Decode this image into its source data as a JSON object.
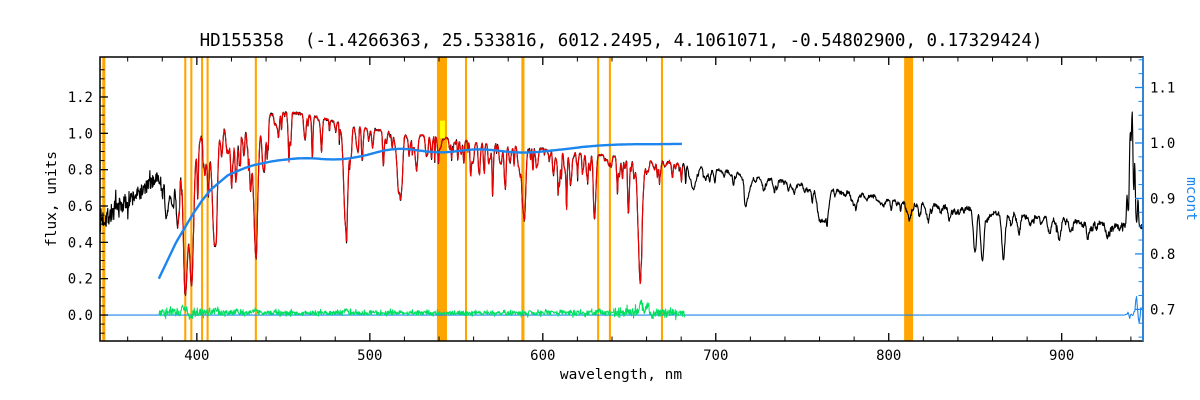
{
  "chart_data": {
    "type": "line",
    "title": "HD155358  (-1.4266363, 25.533816, 6012.2495, 4.1061071, -0.54802900, 0.17329424)",
    "xlabel": "wavelength, nm",
    "ylabel_left": "flux, units",
    "ylabel_right": "mcont",
    "x_range": [
      344,
      947
    ],
    "y_left_range": [
      -0.143,
      1.42
    ],
    "y_right_range": [
      0.643,
      1.155
    ],
    "x_major_ticks": [
      400,
      500,
      600,
      700,
      800,
      900
    ],
    "x_minor_step": 20,
    "y_left_major_ticks": [
      "0.0",
      "0.2",
      "0.4",
      "0.6",
      "0.8",
      "1.0",
      "1.2"
    ],
    "y_left_minor_step": 0.05,
    "y_right_major_ticks": [
      "0.7",
      "0.8",
      "0.9",
      "1.0",
      "1.1"
    ],
    "y_right_minor_step": 0.025,
    "grid": false,
    "legend": null,
    "colors": {
      "frame": "#000000",
      "observed": "#000000",
      "model": "#ee0000",
      "continuum": "#1c86ee",
      "residual": "#00e060",
      "marker_band": "#ffa500",
      "point_marker": "#ffff00",
      "right_axis": "#1c86ee"
    },
    "orange_markers": [
      {
        "x": 346.2,
        "w": 1.8
      },
      {
        "x": 393.3,
        "w": 1.2
      },
      {
        "x": 396.8,
        "w": 1.2
      },
      {
        "x": 403.0,
        "w": 1.2
      },
      {
        "x": 406.2,
        "w": 1.2
      },
      {
        "x": 434.1,
        "w": 1.2
      },
      {
        "x": 541.7,
        "w": 5.8
      },
      {
        "x": 555.6,
        "w": 1.2
      },
      {
        "x": 588.5,
        "w": 1.8
      },
      {
        "x": 632.0,
        "w": 1.2
      },
      {
        "x": 638.8,
        "w": 1.2
      },
      {
        "x": 668.9,
        "w": 1.2
      },
      {
        "x": 811.5,
        "w": 5.2
      }
    ],
    "yellow_marker": {
      "x": 542.0,
      "y_top": 1.07,
      "y_bottom": 0.972,
      "w_nm": 2.8
    },
    "series": {
      "observed": {
        "label": "observed spectrum",
        "range": [
          344.3,
          946.7
        ],
        "envelope": [
          [
            344,
            0.52
          ],
          [
            350,
            0.555
          ],
          [
            356,
            0.6
          ],
          [
            362,
            0.64
          ],
          [
            368,
            0.68
          ],
          [
            374,
            0.73
          ],
          [
            380,
            0.79
          ],
          [
            386,
            0.845
          ],
          [
            392,
            0.9
          ],
          [
            398,
            0.945
          ],
          [
            404,
            0.985
          ],
          [
            410,
            1.01
          ],
          [
            416,
            1.035
          ],
          [
            422,
            1.055
          ],
          [
            428,
            1.07
          ],
          [
            434,
            1.085
          ],
          [
            440,
            1.1
          ],
          [
            446,
            1.11
          ],
          [
            452,
            1.115
          ],
          [
            458,
            1.11
          ],
          [
            464,
            1.1
          ],
          [
            470,
            1.09
          ],
          [
            476,
            1.075
          ],
          [
            482,
            1.06
          ],
          [
            488,
            1.045
          ],
          [
            494,
            1.035
          ],
          [
            500,
            1.025
          ],
          [
            510,
            1.01
          ],
          [
            520,
            1.0
          ],
          [
            530,
            0.99
          ],
          [
            540,
            0.978
          ],
          [
            550,
            0.966
          ],
          [
            560,
            0.955
          ],
          [
            570,
            0.944
          ],
          [
            580,
            0.934
          ],
          [
            590,
            0.924
          ],
          [
            600,
            0.914
          ],
          [
            610,
            0.904
          ],
          [
            620,
            0.894
          ],
          [
            630,
            0.884
          ],
          [
            640,
            0.874
          ],
          [
            650,
            0.864
          ],
          [
            660,
            0.854
          ],
          [
            670,
            0.844
          ],
          [
            680,
            0.834
          ],
          [
            695,
            0.81
          ],
          [
            710,
            0.785
          ],
          [
            725,
            0.76
          ],
          [
            740,
            0.735
          ],
          [
            755,
            0.71
          ],
          [
            770,
            0.685
          ],
          [
            785,
            0.662
          ],
          [
            800,
            0.64
          ],
          [
            815,
            0.62
          ],
          [
            830,
            0.603
          ],
          [
            845,
            0.588
          ],
          [
            860,
            0.572
          ],
          [
            875,
            0.556
          ],
          [
            890,
            0.54
          ],
          [
            905,
            0.524
          ],
          [
            920,
            0.508
          ],
          [
            935,
            0.494
          ],
          [
            947,
            0.485
          ]
        ]
      },
      "model": {
        "label": "model fit",
        "range": [
          389,
          681
        ]
      },
      "continuum": {
        "label": "mcont continuum",
        "points": [
          [
            378,
            0.2
          ],
          [
            383,
            0.3
          ],
          [
            388,
            0.4
          ],
          [
            393,
            0.48
          ],
          [
            398,
            0.56
          ],
          [
            403,
            0.63
          ],
          [
            408,
            0.69
          ],
          [
            413,
            0.73
          ],
          [
            418,
            0.77
          ],
          [
            423,
            0.79
          ],
          [
            428,
            0.81
          ],
          [
            433,
            0.825
          ],
          [
            438,
            0.835
          ],
          [
            443,
            0.845
          ],
          [
            448,
            0.852
          ],
          [
            453,
            0.857
          ],
          [
            458,
            0.862
          ],
          [
            463,
            0.863
          ],
          [
            468,
            0.862
          ],
          [
            473,
            0.858
          ],
          [
            478,
            0.856
          ],
          [
            483,
            0.857
          ],
          [
            488,
            0.862
          ],
          [
            493,
            0.87
          ],
          [
            498,
            0.88
          ],
          [
            503,
            0.893
          ],
          [
            508,
            0.905
          ],
          [
            513,
            0.912
          ],
          [
            518,
            0.915
          ],
          [
            523,
            0.912
          ],
          [
            528,
            0.906
          ],
          [
            533,
            0.9
          ],
          [
            538,
            0.896
          ],
          [
            543,
            0.895
          ],
          [
            548,
            0.899
          ],
          [
            553,
            0.905
          ],
          [
            558,
            0.91
          ],
          [
            563,
            0.912
          ],
          [
            568,
            0.91
          ],
          [
            573,
            0.906
          ],
          [
            578,
            0.9
          ],
          [
            583,
            0.896
          ],
          [
            588,
            0.894
          ],
          [
            593,
            0.895
          ],
          [
            598,
            0.898
          ],
          [
            603,
            0.903
          ],
          [
            613,
            0.913
          ],
          [
            623,
            0.925
          ],
          [
            633,
            0.933
          ],
          [
            643,
            0.938
          ],
          [
            653,
            0.94
          ],
          [
            663,
            0.94
          ],
          [
            673,
            0.941
          ],
          [
            681,
            0.942
          ]
        ]
      },
      "residual": {
        "label": "residuals",
        "range": [
          378,
          682
        ],
        "base": 0.012
      },
      "zero_line": {
        "label": "zero line",
        "y": 0
      }
    },
    "absorption_lines_stellar": [
      [
        383.0,
        0.3,
        1.0
      ],
      [
        386.0,
        0.25,
        0.8
      ],
      [
        388.9,
        0.42,
        1.0
      ],
      [
        393.4,
        0.85,
        1.2
      ],
      [
        396.9,
        0.8,
        1.2
      ],
      [
        404.6,
        0.22,
        0.6
      ],
      [
        406.3,
        0.18,
        0.6
      ],
      [
        410.2,
        0.6,
        1.3
      ],
      [
        414.4,
        0.15,
        0.6
      ],
      [
        417.3,
        0.12,
        0.6
      ],
      [
        420.4,
        0.15,
        0.6
      ],
      [
        422.7,
        0.28,
        0.8
      ],
      [
        427.2,
        0.16,
        0.6
      ],
      [
        430.8,
        0.22,
        0.8
      ],
      [
        434.0,
        0.64,
        1.3
      ],
      [
        438.4,
        0.26,
        0.8
      ],
      [
        440.5,
        0.14,
        0.6
      ],
      [
        447.2,
        0.12,
        0.5
      ],
      [
        453.1,
        0.1,
        0.5
      ],
      [
        466.8,
        0.1,
        0.5
      ],
      [
        472.2,
        0.09,
        0.5
      ],
      [
        486.1,
        0.54,
        1.2
      ],
      [
        492.4,
        0.09,
        0.5
      ],
      [
        495.8,
        0.08,
        0.5
      ],
      [
        501.6,
        0.1,
        0.5
      ],
      [
        508.0,
        0.09,
        0.5
      ],
      [
        516.7,
        0.26,
        1.2
      ],
      [
        518.4,
        0.2,
        0.8
      ],
      [
        522.7,
        0.1,
        0.5
      ],
      [
        527.0,
        0.2,
        0.7
      ],
      [
        532.8,
        0.11,
        0.6
      ],
      [
        539.5,
        0.08,
        0.5
      ],
      [
        552.8,
        0.08,
        0.5
      ],
      [
        558.8,
        0.09,
        0.5
      ],
      [
        568.8,
        0.08,
        0.5
      ],
      [
        578.0,
        0.07,
        0.5
      ],
      [
        585.7,
        0.08,
        0.5
      ],
      [
        589.0,
        0.26,
        0.9
      ],
      [
        589.6,
        0.2,
        0.7
      ],
      [
        597.0,
        0.07,
        0.5
      ],
      [
        610.3,
        0.08,
        0.5
      ],
      [
        616.2,
        0.12,
        0.7
      ],
      [
        623.1,
        0.08,
        0.5
      ],
      [
        630.0,
        0.3,
        0.7
      ],
      [
        644.0,
        0.08,
        0.5
      ],
      [
        649.4,
        0.1,
        0.5
      ],
      [
        656.3,
        0.66,
        1.2
      ],
      [
        667.8,
        0.08,
        0.5
      ]
    ],
    "absorption_lines_telluric": [
      [
        687.0,
        0.16,
        1.4
      ],
      [
        694.0,
        0.08,
        1.0
      ],
      [
        718.5,
        0.12,
        1.6
      ],
      [
        728.0,
        0.08,
        1.2
      ],
      [
        760.3,
        0.26,
        1.6
      ],
      [
        763.8,
        0.2,
        1.4
      ],
      [
        780.0,
        0.06,
        1.0
      ],
      [
        797.0,
        0.07,
        1.0
      ],
      [
        822.7,
        0.14,
        1.0
      ],
      [
        835.0,
        0.08,
        0.8
      ],
      [
        849.8,
        0.4,
        0.9
      ],
      [
        854.2,
        0.46,
        0.9
      ],
      [
        866.2,
        0.38,
        0.9
      ],
      [
        875.0,
        0.12,
        0.8
      ],
      [
        882.0,
        0.1,
        0.8
      ],
      [
        893.0,
        0.16,
        0.9
      ],
      [
        898.8,
        0.16,
        0.9
      ],
      [
        905.0,
        0.1,
        0.8
      ],
      [
        915.0,
        0.1,
        0.8
      ],
      [
        926.0,
        0.1,
        0.8
      ]
    ],
    "edge_spikes": [
      [
        937.8,
        0.18,
        0.4
      ],
      [
        939.6,
        0.5,
        0.5
      ],
      [
        940.8,
        0.62,
        0.45
      ],
      [
        942.2,
        0.35,
        0.4
      ],
      [
        944.1,
        0.16,
        0.3
      ]
    ],
    "residual_spikes": [
      [
        392.0,
        0.02,
        1.5
      ],
      [
        396.0,
        -0.02,
        1.2
      ],
      [
        410.5,
        0.02,
        1.0
      ],
      [
        434.0,
        0.02,
        1.0
      ],
      [
        486.0,
        0.018,
        0.9
      ],
      [
        656.8,
        0.05,
        1.0
      ],
      [
        660.5,
        0.035,
        0.9
      ],
      [
        663.0,
        -0.02,
        0.8
      ]
    ],
    "zero_line_spikes": [
      [
        943.2,
        0.095,
        0.55
      ],
      [
        944.8,
        -0.035,
        0.4
      ],
      [
        945.9,
        0.05,
        0.35
      ]
    ],
    "noise": {
      "seed_black": 7,
      "seed_red": 8,
      "seed_green": 9,
      "seed_zero": 11,
      "black_amp": [
        [
          344,
          0.065
        ],
        [
          352,
          0.058
        ],
        [
          360,
          0.05
        ],
        [
          368,
          0.042
        ],
        [
          376,
          0.032
        ],
        [
          384,
          0.022
        ],
        [
          392,
          0.016
        ],
        [
          400,
          0.013
        ],
        [
          415,
          0.011
        ],
        [
          430,
          0.009
        ],
        [
          450,
          0.008
        ],
        [
          480,
          0.007
        ],
        [
          520,
          0.006
        ],
        [
          560,
          0.006
        ],
        [
          600,
          0.006
        ],
        [
          640,
          0.0065
        ],
        [
          680,
          0.007
        ],
        [
          720,
          0.008
        ],
        [
          760,
          0.009
        ],
        [
          800,
          0.01
        ],
        [
          840,
          0.011
        ],
        [
          880,
          0.012
        ],
        [
          920,
          0.013
        ],
        [
          947,
          0.014
        ]
      ],
      "green_amp": [
        [
          378,
          0.022
        ],
        [
          388,
          0.02
        ],
        [
          398,
          0.018
        ],
        [
          410,
          0.014
        ],
        [
          425,
          0.011
        ],
        [
          445,
          0.009
        ],
        [
          465,
          0.009
        ],
        [
          485,
          0.01
        ],
        [
          505,
          0.011
        ],
        [
          525,
          0.009
        ],
        [
          545,
          0.009
        ],
        [
          565,
          0.009
        ],
        [
          585,
          0.01
        ],
        [
          605,
          0.011
        ],
        [
          625,
          0.012
        ],
        [
          645,
          0.016
        ],
        [
          658,
          0.022
        ],
        [
          668,
          0.02
        ],
        [
          682,
          0.013
        ]
      ],
      "stellar_forest": {
        "seed": 12345,
        "count": 280,
        "x0": 378,
        "x1": 683,
        "dmin": 0.015,
        "dmax": 0.13,
        "smin": 0.15,
        "smax": 0.55
      },
      "telluric_forest": {
        "seed": 54321,
        "count": 200,
        "x0": 683,
        "x1": 947,
        "dmin": 0.01,
        "dmax": 0.07,
        "smin": 0.2,
        "smax": 0.8
      }
    }
  }
}
